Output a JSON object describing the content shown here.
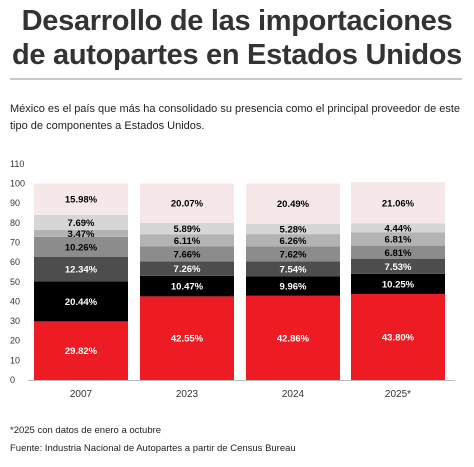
{
  "title_line1": "Desarrollo de las importaciones",
  "title_line2": "de autopartes en Estados Unidos",
  "subtitle": "México es el país que más ha consolidado su presencia como el principal proveedor de este tipo de componentes a Estados Unidos.",
  "footnote": "*2025 con datos de enero a octubre",
  "source": "Fuente: Industria Nacional de Autopartes a partir de Census Bureau",
  "chart_data": {
    "type": "bar",
    "stacked": true,
    "categories": [
      "2007",
      "2023",
      "2024",
      "2025*"
    ],
    "ylim": [
      0,
      110
    ],
    "yticks": [
      0,
      10,
      20,
      30,
      40,
      50,
      60,
      70,
      80,
      90,
      100,
      110
    ],
    "grid": false,
    "series": [
      {
        "values": [
          29.82,
          42.55,
          42.86,
          43.8
        ],
        "color": "#ed1c24",
        "label_color": "#ffffff"
      },
      {
        "values": [
          20.44,
          10.47,
          9.96,
          10.25
        ],
        "color": "#000000",
        "label_color": "#ffffff"
      },
      {
        "values": [
          12.34,
          7.26,
          7.54,
          7.53
        ],
        "color": "#4d4d4d",
        "label_color": "#ffffff"
      },
      {
        "values": [
          10.26,
          7.66,
          7.62,
          6.81
        ],
        "color": "#8c8c8c",
        "label_color": "#000000"
      },
      {
        "values": [
          3.47,
          6.11,
          6.26,
          6.81
        ],
        "color": "#b3b3b3",
        "label_color": "#000000"
      },
      {
        "values": [
          7.69,
          5.89,
          5.28,
          4.44
        ],
        "color": "#d6d6d6",
        "label_color": "#000000"
      },
      {
        "values": [
          15.98,
          20.07,
          20.49,
          21.06
        ],
        "color": "#f6e8e8",
        "label_color": "#000000"
      }
    ]
  }
}
